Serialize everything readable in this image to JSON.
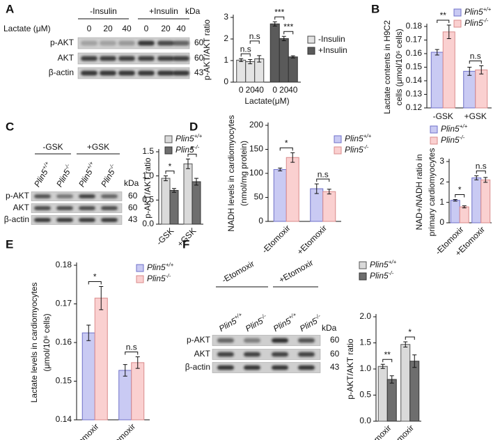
{
  "panels": [
    "A",
    "B",
    "C",
    "D",
    "E",
    "F"
  ],
  "blots": [
    {
      "groups": [
        "-Insulin",
        "+Insulin"
      ],
      "title": "Lactate (μM)",
      "lanes": [
        "0",
        "20",
        "40",
        "0",
        "20",
        "40"
      ],
      "rows": [
        "p-AKT",
        "AKT",
        "β-actin"
      ],
      "unit": "kDa",
      "markers": [
        "60",
        "60",
        "43"
      ]
    },
    {
      "groups": [
        "-GSK",
        "+GSK"
      ],
      "lanes": [
        "Plin5+/+",
        "Plin5-/-",
        "Plin5+/+",
        "Plin5-/-"
      ],
      "rows": [
        "p-AKT",
        "AKT",
        "β-actin"
      ],
      "unit": "kDa",
      "markers": [
        "60",
        "60",
        "43"
      ]
    },
    {
      "groups": [
        "-Etomoxir",
        "+Etomoxir"
      ],
      "lanes": [
        "Plin5+/+",
        "Plin5-/-",
        "Plin5+/+",
        "Plin5-/-"
      ],
      "rows": [
        "p-AKT",
        "AKT",
        "β-actin"
      ],
      "unit": "kDa",
      "markers": [
        "60",
        "60",
        "43"
      ]
    }
  ],
  "chart_data": [
    {
      "type": "bar",
      "y_label": [
        "p-AKT/AKT ratio"
      ],
      "x_label": "Lactate(μM)",
      "categories": [
        "0",
        "20",
        "40"
      ],
      "series": [
        {
          "name": "-Insulin",
          "color": "#e3e3e3",
          "edgecolor": "#444",
          "values": [
            1.02,
            0.95,
            1.08
          ],
          "errors": [
            0.07,
            0.1,
            0.15
          ]
        },
        {
          "name": "+Insulin",
          "color": "#5a5a5a",
          "edgecolor": "#333",
          "values": [
            2.7,
            2.02,
            1.17
          ],
          "errors": [
            0.1,
            0.1,
            0.05
          ]
        }
      ],
      "ylim": [
        0,
        3
      ],
      "yticks": [
        0,
        1,
        2,
        3
      ],
      "annotations": [
        "n.s",
        "n.s",
        "***",
        "***"
      ]
    },
    {
      "type": "bar",
      "y_label": [
        "Lactate contents in H9C2",
        "cells (μmol/10⁶ cells)"
      ],
      "categories": [
        "-GSK",
        "+GSK"
      ],
      "series": [
        {
          "name": "Plin5+/+",
          "color": "#c9caf3",
          "edgecolor": "#6f70c8",
          "values": [
            0.161,
            0.147
          ],
          "errors": [
            0.002,
            0.003
          ]
        },
        {
          "name": "Plin5-/-",
          "color": "#fad0d0",
          "edgecolor": "#d98a8a",
          "values": [
            0.176,
            0.148
          ],
          "errors": [
            0.005,
            0.003
          ]
        }
      ],
      "ylim": [
        0.12,
        0.18
      ],
      "yticks": [
        0.12,
        0.13,
        0.14,
        0.15,
        0.16,
        0.17,
        0.18
      ],
      "annotations": [
        "**",
        "n.s"
      ]
    },
    {
      "type": "bar",
      "y_label": [
        "p-AKT/AKT ratio"
      ],
      "categories": [
        "-GSK",
        "+GSK"
      ],
      "series": [
        {
          "name": "Plin5+/+",
          "color": "#dadada",
          "edgecolor": "#555",
          "values": [
            0.95,
            1.25
          ],
          "errors": [
            0.05,
            0.1
          ]
        },
        {
          "name": "Plin5-/-",
          "color": "#6e6e6e",
          "edgecolor": "#333",
          "values": [
            0.7,
            0.88
          ],
          "errors": [
            0.04,
            0.07
          ]
        }
      ],
      "ylim": [
        0,
        1.5
      ],
      "yticks": [
        {
          "value": 0,
          "label": "0.0"
        },
        {
          "value": 0.5,
          "label": "0.5"
        },
        {
          "value": 1,
          "label": "1.0"
        },
        {
          "value": 1.5,
          "label": "1.5"
        }
      ],
      "annotations": [
        "*",
        "*"
      ]
    },
    {
      "type": "bar",
      "y_label": [
        "NADH levels in cardiomyocytes",
        "(nmol/mg protein)"
      ],
      "categories": [
        "-Etomoxir",
        "+Etomoxir"
      ],
      "series": [
        {
          "name": "Plin5+/+",
          "color": "#c9caf3",
          "edgecolor": "#6f70c8",
          "values": [
            108,
            68
          ],
          "errors": [
            3,
            10
          ]
        },
        {
          "name": "Plin5-/-",
          "color": "#fad0d0",
          "edgecolor": "#d98a8a",
          "values": [
            133,
            62
          ],
          "errors": [
            10,
            5
          ]
        }
      ],
      "ylim": [
        0,
        200
      ],
      "yticks": [
        0,
        50,
        100,
        150,
        200
      ],
      "annotations": [
        "*",
        "n.s"
      ]
    },
    {
      "type": "bar",
      "y_label": [
        "NAD+/NADH ratio in",
        "primary cardiomyocytes"
      ],
      "categories": [
        "-Etomoxir",
        "+Etomoxir"
      ],
      "series": [
        {
          "name": "Plin5+/+",
          "color": "#c9caf3",
          "edgecolor": "#6f70c8",
          "values": [
            1.1,
            2.2
          ],
          "errors": [
            0.04,
            0.1
          ]
        },
        {
          "name": "Plin5-/-",
          "color": "#fad0d0",
          "edgecolor": "#d98a8a",
          "values": [
            0.78,
            2.1
          ],
          "errors": [
            0.05,
            0.12
          ]
        }
      ],
      "ylim": [
        0,
        3
      ],
      "yticks": [
        0,
        1,
        2,
        3
      ],
      "annotations": [
        "*",
        "n.s"
      ]
    },
    {
      "type": "bar",
      "y_label": [
        "Lactate levels in cardiomyocytes",
        "(μmol/10⁶ cells)"
      ],
      "categories": [
        "-Etomoxir",
        "+Etomoxir"
      ],
      "series": [
        {
          "name": "Plin5+/+",
          "color": "#c9caf3",
          "edgecolor": "#6f70c8",
          "values": [
            0.1625,
            0.1528
          ],
          "errors": [
            0.002,
            0.0015
          ]
        },
        {
          "name": "Plin5-/-",
          "color": "#fad0d0",
          "edgecolor": "#d98a8a",
          "values": [
            0.1715,
            0.1548
          ],
          "errors": [
            0.003,
            0.0015
          ]
        }
      ],
      "ylim": [
        0.14,
        0.18
      ],
      "yticks": [
        0.14,
        0.15,
        0.16,
        0.17,
        0.18
      ],
      "annotations": [
        "*",
        "n.s"
      ]
    },
    {
      "type": "bar",
      "y_label": [
        "p-AKT/AKT ratio"
      ],
      "categories": [
        "-Etomoxir",
        "+Etomoxir"
      ],
      "series": [
        {
          "name": "Plin5+/+",
          "color": "#dadada",
          "edgecolor": "#555",
          "values": [
            1.05,
            1.47
          ],
          "errors": [
            0.04,
            0.05
          ]
        },
        {
          "name": "Plin5-/-",
          "color": "#6e6e6e",
          "edgecolor": "#333",
          "values": [
            0.8,
            1.15
          ],
          "errors": [
            0.07,
            0.12
          ]
        }
      ],
      "ylim": [
        0,
        2
      ],
      "yticks": [
        {
          "value": 0,
          "label": "0.0"
        },
        {
          "value": 0.5,
          "label": "0.5"
        },
        {
          "value": 1,
          "label": "1.0"
        },
        {
          "value": 1.5,
          "label": "1.5"
        },
        {
          "value": 2,
          "label": "2.0"
        }
      ],
      "annotations": [
        "**",
        "*"
      ]
    }
  ]
}
